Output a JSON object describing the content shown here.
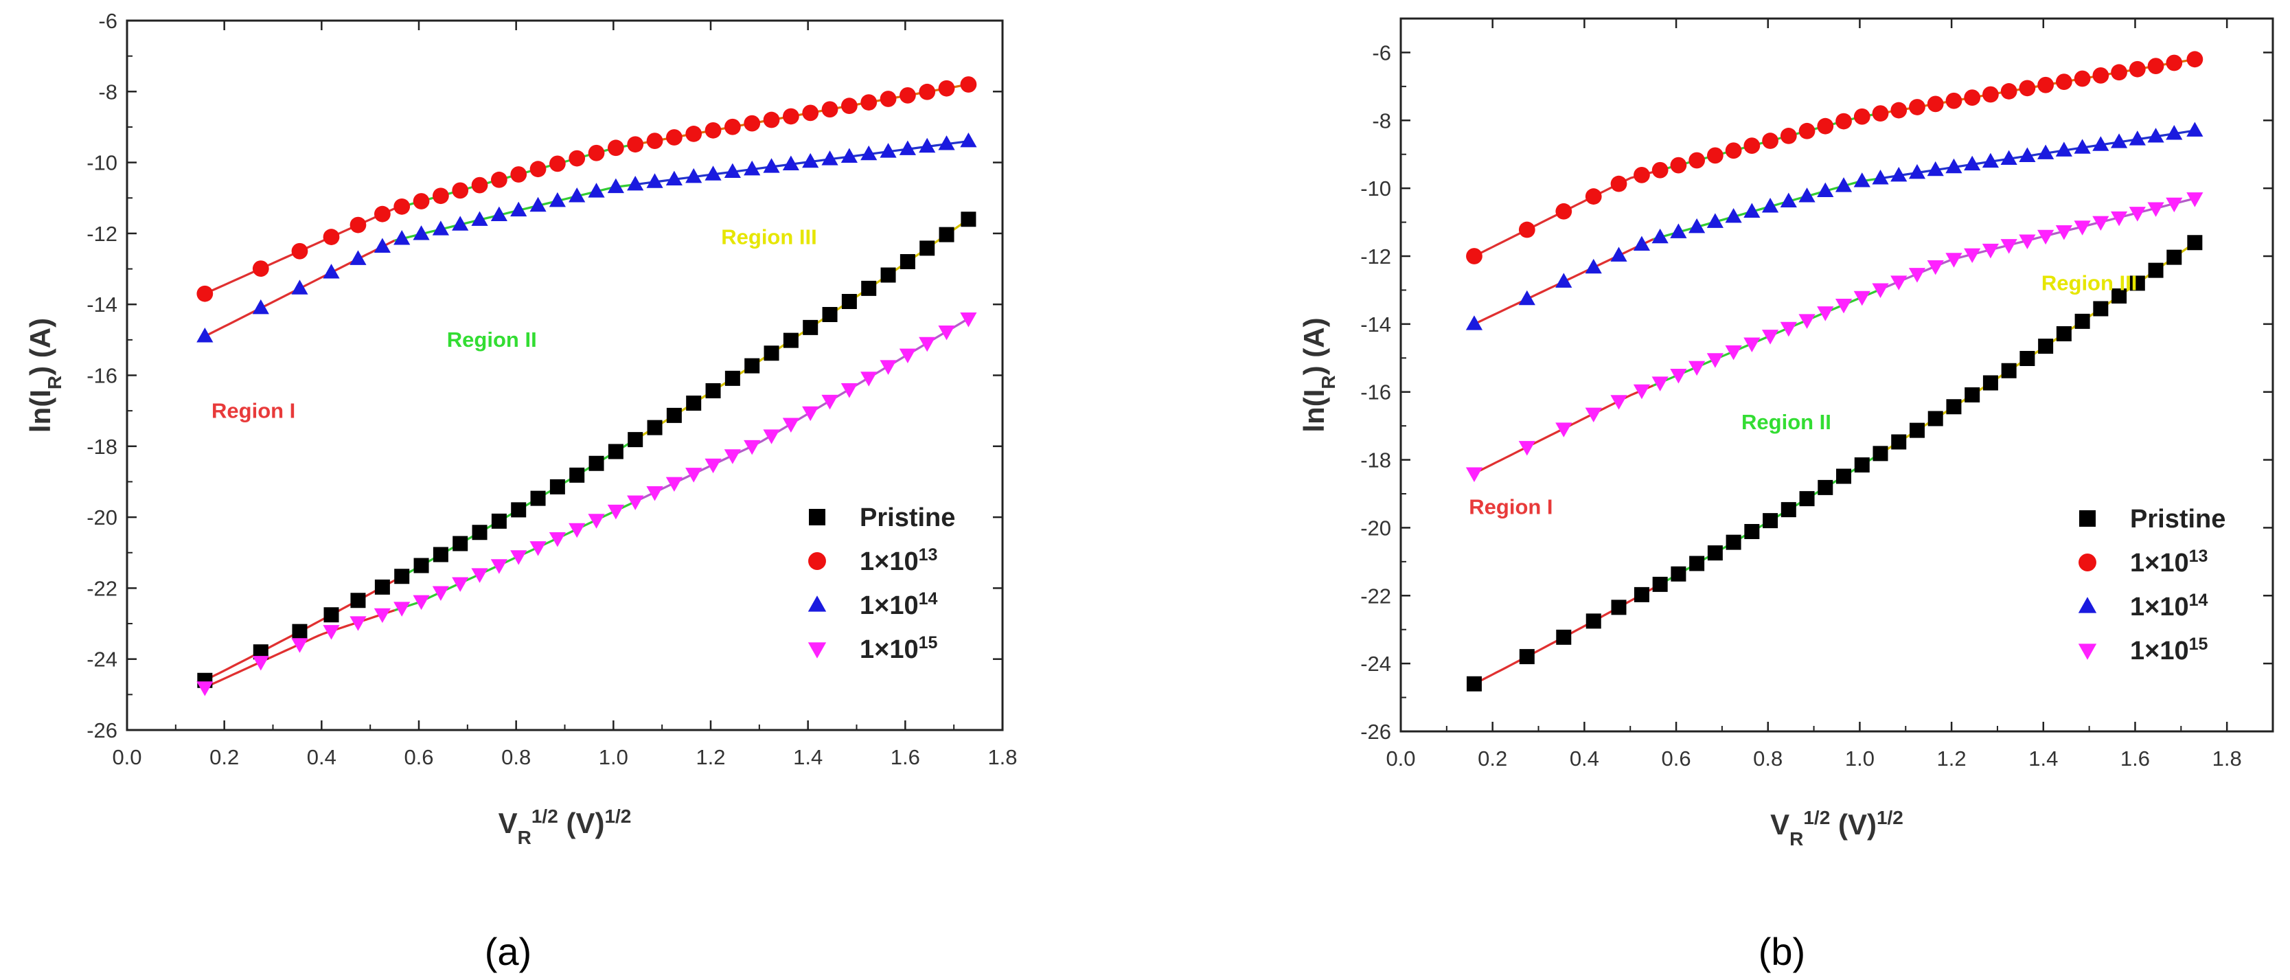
{
  "series_styles": [
    {
      "name": "Pristine",
      "marker": "square",
      "color": "#000000",
      "fit_color": "#d6c200"
    },
    {
      "name": "1×10^13",
      "marker": "circle",
      "color": "#ee1111",
      "fit_color": "#e06a00"
    },
    {
      "name": "1×10^14",
      "marker": "triangle-up",
      "color": "#1a1adf",
      "fit_color": "#2233cc"
    },
    {
      "name": "1×10^15",
      "marker": "triangle-down",
      "color": "#ff22ff",
      "fit_color": "#b35cc8"
    }
  ],
  "fit_segment_colors": {
    "region1": "#e03030",
    "region2": "#33cc33",
    "region3": "#d6c200"
  },
  "chart_data": [
    {
      "panel_label": "(a)",
      "type": "scatter",
      "xlabel": "V_R^{1/2} (V)^{1/2}",
      "ylabel": "ln(I_R) (A)",
      "xlim": [
        0.0,
        1.8
      ],
      "ylim": [
        -26,
        -6
      ],
      "xticks": [
        "0.0",
        "0.2",
        "0.4",
        "0.6",
        "0.8",
        "1.0",
        "1.2",
        "1.4",
        "1.6",
        "1.8"
      ],
      "yticks": [
        "-6",
        "-8",
        "-10",
        "-12",
        "-14",
        "-16",
        "-18",
        "-20",
        "-22",
        "-24",
        "-26"
      ],
      "legend": {
        "placement": "lower-right",
        "entries": [
          {
            "base": "Pristine",
            "exp": ""
          },
          {
            "base": "1×10",
            "exp": "13"
          },
          {
            "base": "1×10",
            "exp": "14"
          },
          {
            "base": "1×10",
            "exp": "15"
          }
        ]
      },
      "annotations": [
        {
          "text": "Region I",
          "x": 0.26,
          "y": -17.2,
          "color": "#e83a3a"
        },
        {
          "text": "Region II",
          "x": 0.75,
          "y": -15.2,
          "color": "#33dd33"
        },
        {
          "text": "Region III",
          "x": 1.32,
          "y": -12.3,
          "color": "#e6e600"
        }
      ],
      "series": [
        {
          "name": "Pristine",
          "points": [
            [
              0.16,
              -24.6
            ],
            [
              1.73,
              -11.6
            ]
          ],
          "curvature": -1.0
        },
        {
          "name": "1×10^13",
          "points": [
            [
              0.16,
              -13.7
            ],
            [
              0.55,
              -11.3
            ],
            [
              1.0,
              -9.6
            ],
            [
              1.73,
              -7.8
            ]
          ],
          "curvature": 0.0
        },
        {
          "name": "1×10^14",
          "points": [
            [
              0.16,
              -14.9
            ],
            [
              0.55,
              -12.2
            ],
            [
              1.0,
              -10.7
            ],
            [
              1.73,
              -9.4
            ]
          ],
          "curvature": 0.0
        },
        {
          "name": "1×10^15",
          "points": [
            [
              0.16,
              -24.8
            ],
            [
              0.4,
              -23.3
            ],
            [
              0.6,
              -22.4
            ],
            [
              0.9,
              -20.5
            ],
            [
              1.3,
              -17.9
            ],
            [
              1.73,
              -14.4
            ]
          ],
          "curvature": 0.0
        }
      ]
    },
    {
      "panel_label": "(b)",
      "type": "scatter",
      "xlabel": "V_R^{1/2} (V)^{1/2}",
      "ylabel": "ln(I_R) (A)",
      "xlim": [
        0.0,
        1.9
      ],
      "ylim": [
        -26,
        -5
      ],
      "xticks": [
        "0.0",
        "0.2",
        "0.4",
        "0.6",
        "0.8",
        "1.0",
        "1.2",
        "1.4",
        "1.6",
        "1.8"
      ],
      "yticks": [
        "-6",
        "-8",
        "-10",
        "-12",
        "-14",
        "-16",
        "-18",
        "-20",
        "-22",
        "-24",
        "-26"
      ],
      "legend": {
        "placement": "lower-right",
        "entries": [
          {
            "base": "Pristine",
            "exp": ""
          },
          {
            "base": "1×10",
            "exp": "13"
          },
          {
            "base": "1×10",
            "exp": "14"
          },
          {
            "base": "1×10",
            "exp": "15"
          }
        ]
      },
      "annotations": [
        {
          "text": "Region I",
          "x": 0.24,
          "y": -19.6,
          "color": "#e83a3a"
        },
        {
          "text": "Region II",
          "x": 0.84,
          "y": -17.1,
          "color": "#33dd33"
        },
        {
          "text": "Region III",
          "x": 1.5,
          "y": -13.0,
          "color": "#e6e600"
        }
      ],
      "series": [
        {
          "name": "Pristine",
          "points": [
            [
              0.16,
              -24.6
            ],
            [
              1.73,
              -11.6
            ]
          ],
          "curvature": -1.0
        },
        {
          "name": "1×10^13",
          "points": [
            [
              0.16,
              -12.0
            ],
            [
              0.5,
              -9.7
            ],
            [
              1.0,
              -7.9
            ],
            [
              1.73,
              -6.2
            ]
          ],
          "curvature": 0.0
        },
        {
          "name": "1×10^14",
          "points": [
            [
              0.16,
              -14.0
            ],
            [
              0.55,
              -11.5
            ],
            [
              1.0,
              -9.8
            ],
            [
              1.73,
              -8.3
            ]
          ],
          "curvature": 0.0
        },
        {
          "name": "1×10^15",
          "points": [
            [
              0.16,
              -18.4
            ],
            [
              0.5,
              -16.1
            ],
            [
              0.9,
              -13.8
            ],
            [
              1.2,
              -12.1
            ],
            [
              1.73,
              -10.3
            ]
          ],
          "curvature": 0.0
        }
      ]
    }
  ]
}
